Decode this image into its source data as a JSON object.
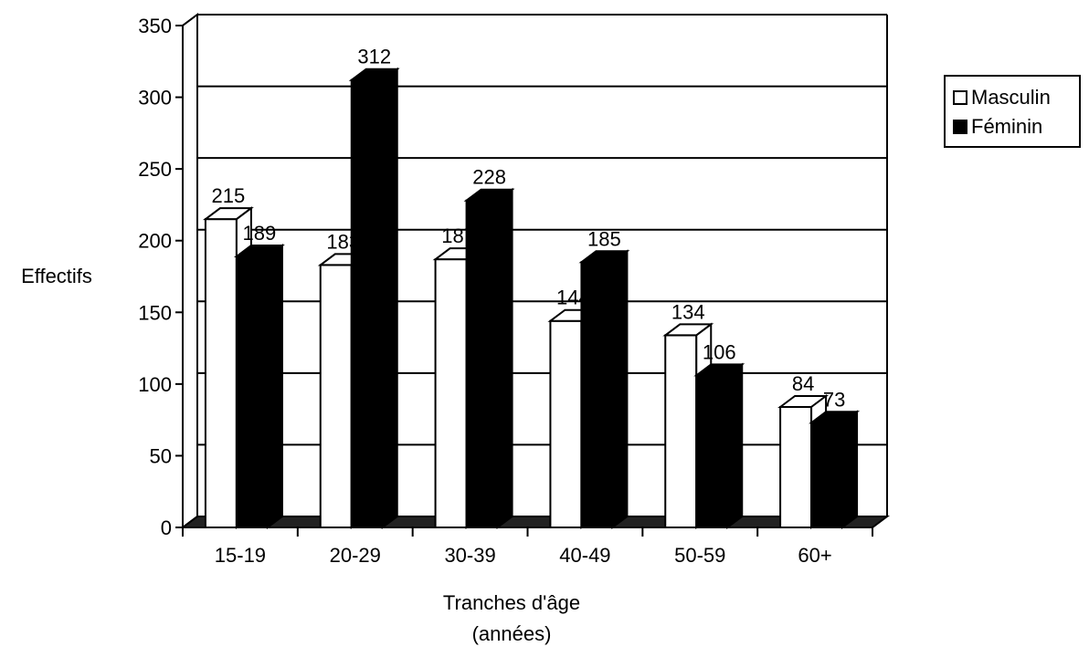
{
  "chart_data": {
    "type": "bar",
    "categories": [
      "15-19",
      "20-29",
      "30-39",
      "40-49",
      "50-59",
      "60+"
    ],
    "series": [
      {
        "name": "Masculin",
        "values": [
          215,
          183,
          187,
          144,
          134,
          84
        ],
        "color": "#ffffff"
      },
      {
        "name": "Féminin",
        "values": [
          189,
          312,
          228,
          185,
          106,
          73
        ],
        "color": "#000000"
      }
    ],
    "ylabel": "Effectifs",
    "xlabel": "Tranches d'âge",
    "xlabel_line2": "(années)",
    "ylim": [
      0,
      350
    ],
    "yticks": [
      0,
      50,
      100,
      150,
      200,
      250,
      300,
      350
    ],
    "grid": true,
    "legend": "right",
    "three_d": true
  }
}
